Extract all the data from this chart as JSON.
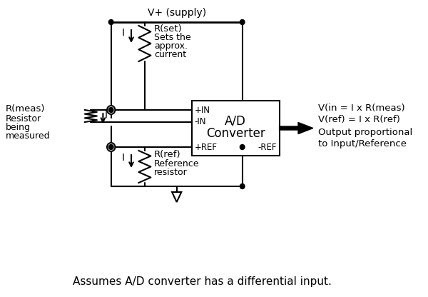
{
  "bg_color": "#ffffff",
  "line_color": "#000000",
  "text_color": "#000000",
  "title_text": "Assumes A/D converter has a differential input.",
  "title_fontsize": 11,
  "fig_width": 6.0,
  "fig_height": 4.16,
  "dpi": 100,
  "supply_label": "V+ (supply)",
  "rset_label": "R(set)",
  "rset_desc1": "Sets the",
  "rset_desc2": "approx.",
  "rset_desc3": "current",
  "rmeas_label": "R(meas)",
  "rmeas_desc1": "Resistor",
  "rmeas_desc2": "being",
  "rmeas_desc3": "measured",
  "rref_label": "R(ref)",
  "rref_desc1": "Reference",
  "rref_desc2": "resistor",
  "adc_label1": "A/D",
  "adc_label2": "Converter",
  "pin_plus_in": "+IN",
  "pin_minus_in": "-IN",
  "pin_plus_ref": "+REF",
  "pin_minus_ref": "-REF",
  "eq1": "V(in = I x R(meas)",
  "eq2": "V(ref) = I x R(ref)",
  "out_desc1": "Output proportional",
  "out_desc2": "to Input/Reference",
  "current_label": "I"
}
